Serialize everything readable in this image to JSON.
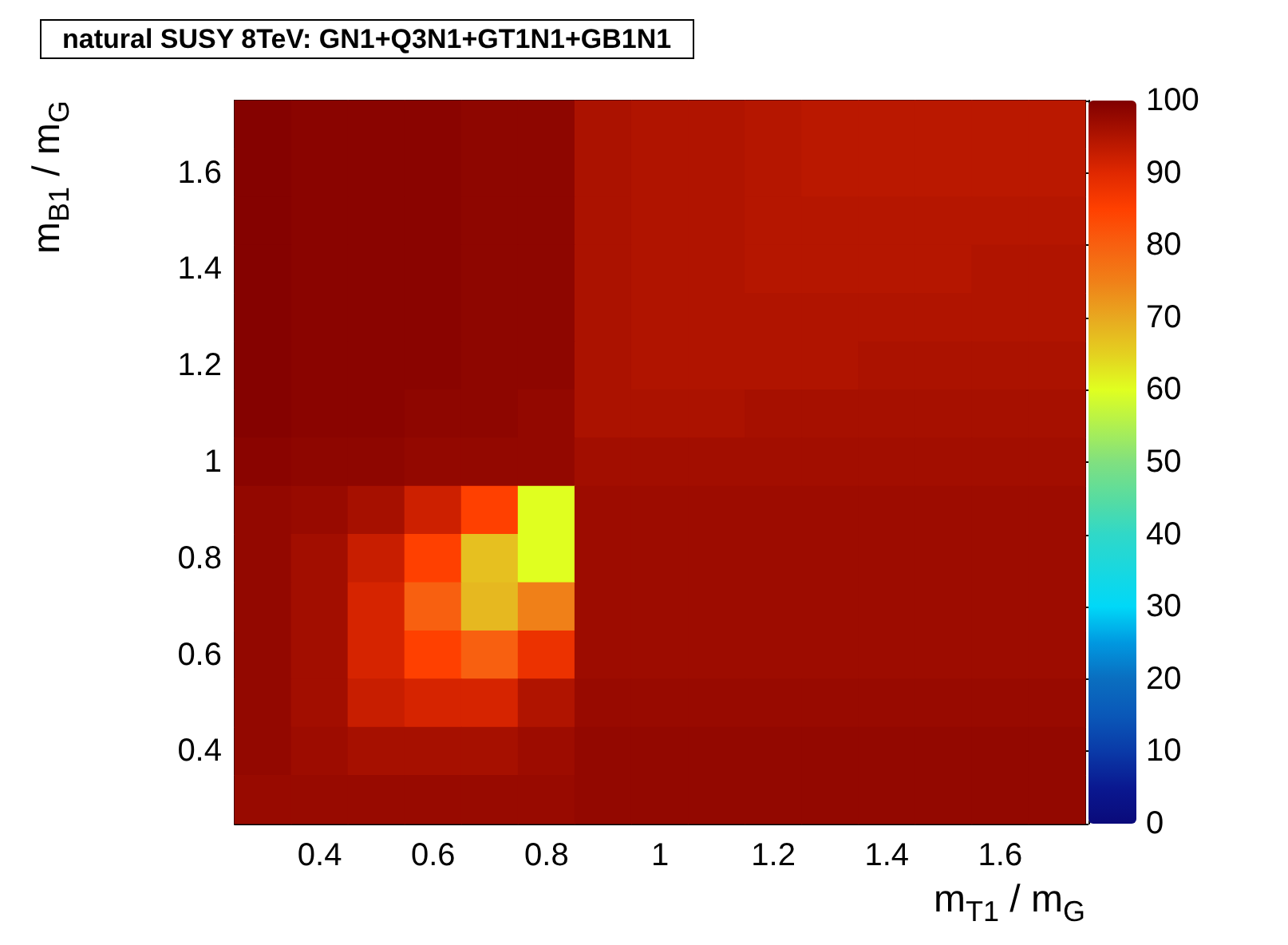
{
  "chart_data": {
    "type": "heatmap",
    "title": "natural SUSY 8TeV: GN1+Q3N1+GT1N1+GB1N1",
    "xlabel": "m$_{T1}$ / m$_{G}$",
    "ylabel": "m$_{B1}$ / m$_{G}$",
    "categories": [
      null,
      "0.4",
      null,
      "0.6",
      null,
      "0.8",
      null,
      "1",
      null,
      "1.2",
      null,
      "1.4",
      null,
      "1.6",
      null
    ],
    "y_categories": [
      null,
      "1.6",
      null,
      "1.4",
      null,
      "1.2",
      null,
      "1",
      null,
      "0.8",
      null,
      "0.6",
      null,
      "0.4",
      null
    ],
    "cells": [
      [
        99.5,
        99,
        99,
        99,
        98.5,
        98.5,
        95.5,
        95,
        95,
        94.5,
        94,
        94,
        94,
        94,
        94
      ],
      [
        99.5,
        99,
        99,
        99,
        98.5,
        98.5,
        95.5,
        95,
        95,
        94.5,
        94,
        94,
        94,
        94,
        94
      ],
      [
        99.5,
        99,
        99,
        99,
        98.5,
        98.5,
        95.5,
        95,
        95,
        94.5,
        94.5,
        94.5,
        94.5,
        94.5,
        94.5
      ],
      [
        99.5,
        99,
        99,
        99,
        98.5,
        98.5,
        95.5,
        95,
        95,
        94.5,
        94.5,
        94.5,
        94.5,
        95,
        95
      ],
      [
        99.5,
        99,
        99,
        99,
        98.5,
        98.5,
        95.5,
        95,
        95,
        95,
        95,
        95,
        95,
        95,
        95
      ],
      [
        99.5,
        99,
        99,
        99,
        98.5,
        98.5,
        95.5,
        95,
        95,
        95,
        95,
        95.5,
        95.5,
        95.5,
        95.5
      ],
      [
        99.5,
        99,
        99,
        98.5,
        98.5,
        98,
        95.5,
        95.5,
        95.5,
        96,
        96,
        96,
        96,
        96,
        96
      ],
      [
        99,
        98.5,
        98.5,
        98,
        98,
        98,
        96.5,
        96.5,
        96.5,
        96.5,
        96.5,
        96.5,
        96.5,
        96.5,
        96.5
      ],
      [
        98,
        97.5,
        96,
        92,
        85,
        60,
        97,
        97,
        97,
        97,
        97,
        97,
        97,
        97,
        97
      ],
      [
        98,
        96.5,
        92.5,
        85,
        67,
        60,
        97,
        97,
        97,
        97,
        97,
        97,
        97,
        97,
        97
      ],
      [
        98,
        96.5,
        91,
        80,
        68,
        75,
        97,
        97,
        97,
        97,
        97,
        97,
        97,
        97,
        97
      ],
      [
        98,
        96.5,
        91,
        85,
        80,
        88,
        97,
        97,
        97,
        97,
        97,
        97,
        97,
        97,
        97
      ],
      [
        98,
        96.5,
        92.5,
        91,
        91,
        95,
        97.5,
        97.5,
        97.5,
        97.5,
        97.5,
        97.5,
        97.5,
        97.5,
        97.5
      ],
      [
        98,
        97,
        96,
        96,
        96,
        97,
        98,
        98,
        98,
        98,
        98,
        98,
        98,
        98,
        98
      ],
      [
        97.5,
        97.5,
        97.5,
        97.5,
        97.5,
        97.5,
        98,
        98,
        98,
        98,
        98,
        98,
        98,
        98,
        98
      ]
    ],
    "clim": [
      0,
      100
    ],
    "cticks": [
      0,
      10,
      20,
      30,
      40,
      50,
      60,
      70,
      80,
      90,
      100
    ]
  }
}
